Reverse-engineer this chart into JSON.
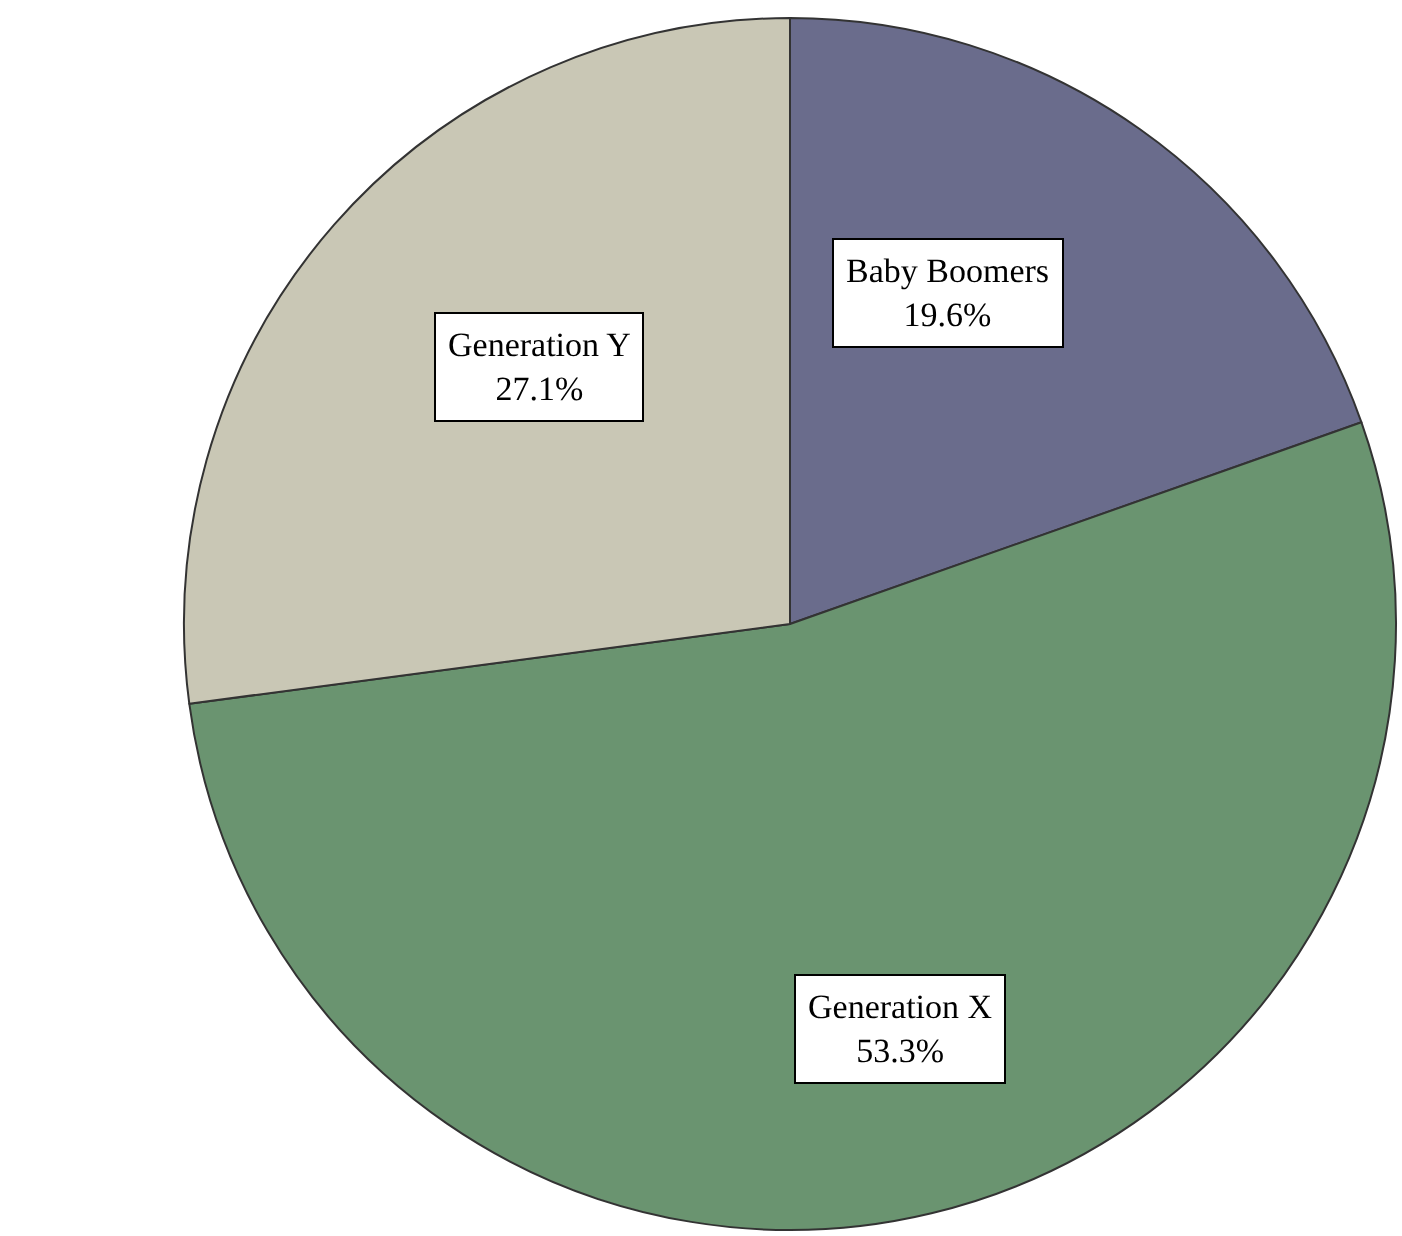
{
  "chart_data": {
    "type": "pie",
    "categories": [
      "Baby Boomers",
      "Generation X",
      "Generation Y"
    ],
    "values": [
      19.6,
      53.3,
      27.1
    ],
    "value_labels": [
      "19.6%",
      "53.3%",
      "27.1%"
    ],
    "colors": [
      "#6a6c8c",
      "#6a9470",
      "#c9c7b5"
    ],
    "legend": false
  }
}
